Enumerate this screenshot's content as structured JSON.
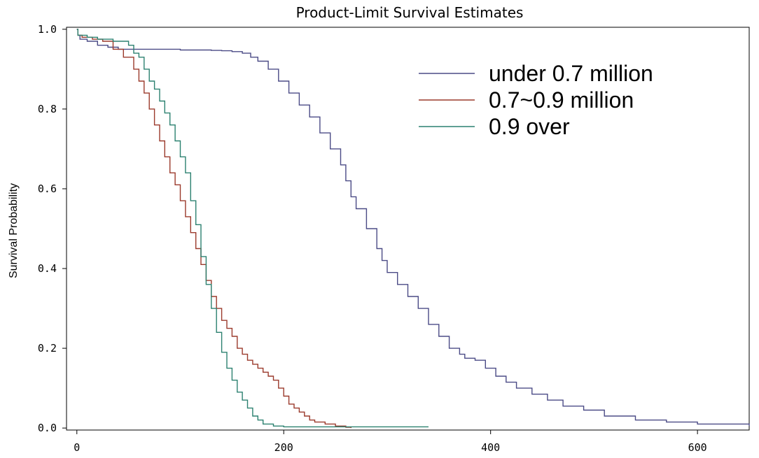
{
  "chart_data": {
    "type": "line",
    "step": true,
    "title": "Product-Limit Survival Estimates",
    "xlabel": "",
    "ylabel": "Survival Probability",
    "xlim": [
      -10,
      650
    ],
    "ylim": [
      -0.005,
      1.005
    ],
    "xticks": [
      0,
      200,
      400,
      600
    ],
    "yticks": [
      "0.0",
      "0.2",
      "0.4",
      "0.6",
      "0.8",
      "1.0"
    ],
    "grid": false,
    "legend_position": "top-right",
    "series": [
      {
        "name": "under 0.7 million",
        "color": "#4b4b86",
        "points": [
          [
            0,
            1.0
          ],
          [
            1,
            0.985
          ],
          [
            3,
            0.975
          ],
          [
            10,
            0.97
          ],
          [
            20,
            0.96
          ],
          [
            30,
            0.955
          ],
          [
            40,
            0.95
          ],
          [
            100,
            0.948
          ],
          [
            130,
            0.947
          ],
          [
            140,
            0.946
          ],
          [
            150,
            0.944
          ],
          [
            160,
            0.94
          ],
          [
            168,
            0.93
          ],
          [
            175,
            0.92
          ],
          [
            185,
            0.9
          ],
          [
            195,
            0.87
          ],
          [
            205,
            0.84
          ],
          [
            215,
            0.81
          ],
          [
            225,
            0.78
          ],
          [
            235,
            0.74
          ],
          [
            245,
            0.7
          ],
          [
            255,
            0.66
          ],
          [
            260,
            0.62
          ],
          [
            265,
            0.58
          ],
          [
            270,
            0.55
          ],
          [
            280,
            0.5
          ],
          [
            290,
            0.45
          ],
          [
            295,
            0.42
          ],
          [
            300,
            0.39
          ],
          [
            310,
            0.36
          ],
          [
            320,
            0.33
          ],
          [
            330,
            0.3
          ],
          [
            340,
            0.26
          ],
          [
            350,
            0.23
          ],
          [
            360,
            0.2
          ],
          [
            370,
            0.185
          ],
          [
            375,
            0.175
          ],
          [
            385,
            0.17
          ],
          [
            395,
            0.15
          ],
          [
            405,
            0.13
          ],
          [
            415,
            0.115
          ],
          [
            425,
            0.1
          ],
          [
            440,
            0.085
          ],
          [
            455,
            0.07
          ],
          [
            470,
            0.055
          ],
          [
            490,
            0.045
          ],
          [
            510,
            0.03
          ],
          [
            540,
            0.02
          ],
          [
            570,
            0.015
          ],
          [
            600,
            0.01
          ],
          [
            650,
            0.005
          ]
        ]
      },
      {
        "name": "0.7~0.9 million",
        "color": "#9b3a2c",
        "points": [
          [
            0,
            1.0
          ],
          [
            1,
            0.985
          ],
          [
            5,
            0.98
          ],
          [
            15,
            0.975
          ],
          [
            25,
            0.97
          ],
          [
            35,
            0.95
          ],
          [
            45,
            0.93
          ],
          [
            55,
            0.9
          ],
          [
            60,
            0.87
          ],
          [
            65,
            0.84
          ],
          [
            70,
            0.8
          ],
          [
            75,
            0.76
          ],
          [
            80,
            0.72
          ],
          [
            85,
            0.68
          ],
          [
            90,
            0.64
          ],
          [
            95,
            0.61
          ],
          [
            100,
            0.57
          ],
          [
            105,
            0.53
          ],
          [
            110,
            0.49
          ],
          [
            115,
            0.45
          ],
          [
            120,
            0.41
          ],
          [
            125,
            0.37
          ],
          [
            130,
            0.33
          ],
          [
            135,
            0.3
          ],
          [
            140,
            0.27
          ],
          [
            145,
            0.25
          ],
          [
            150,
            0.23
          ],
          [
            155,
            0.2
          ],
          [
            160,
            0.185
          ],
          [
            165,
            0.17
          ],
          [
            170,
            0.16
          ],
          [
            175,
            0.15
          ],
          [
            180,
            0.14
          ],
          [
            185,
            0.13
          ],
          [
            190,
            0.12
          ],
          [
            195,
            0.1
          ],
          [
            200,
            0.08
          ],
          [
            205,
            0.06
          ],
          [
            210,
            0.05
          ],
          [
            215,
            0.04
          ],
          [
            220,
            0.03
          ],
          [
            225,
            0.02
          ],
          [
            230,
            0.015
          ],
          [
            240,
            0.01
          ],
          [
            250,
            0.005
          ],
          [
            260,
            0.002
          ],
          [
            265,
            0.0
          ]
        ]
      },
      {
        "name": "0.9 over",
        "color": "#2c8170",
        "points": [
          [
            0,
            1.0
          ],
          [
            1,
            0.985
          ],
          [
            10,
            0.98
          ],
          [
            20,
            0.975
          ],
          [
            35,
            0.97
          ],
          [
            50,
            0.96
          ],
          [
            55,
            0.94
          ],
          [
            60,
            0.93
          ],
          [
            65,
            0.9
          ],
          [
            70,
            0.87
          ],
          [
            75,
            0.85
          ],
          [
            80,
            0.82
          ],
          [
            85,
            0.79
          ],
          [
            90,
            0.76
          ],
          [
            95,
            0.72
          ],
          [
            100,
            0.68
          ],
          [
            105,
            0.64
          ],
          [
            110,
            0.57
          ],
          [
            115,
            0.51
          ],
          [
            120,
            0.43
          ],
          [
            125,
            0.36
          ],
          [
            130,
            0.3
          ],
          [
            135,
            0.24
          ],
          [
            140,
            0.19
          ],
          [
            145,
            0.15
          ],
          [
            150,
            0.12
          ],
          [
            155,
            0.09
          ],
          [
            160,
            0.07
          ],
          [
            165,
            0.05
          ],
          [
            170,
            0.03
          ],
          [
            175,
            0.02
          ],
          [
            180,
            0.01
          ],
          [
            190,
            0.005
          ],
          [
            200,
            0.003
          ],
          [
            340,
            0.003
          ]
        ]
      }
    ]
  }
}
